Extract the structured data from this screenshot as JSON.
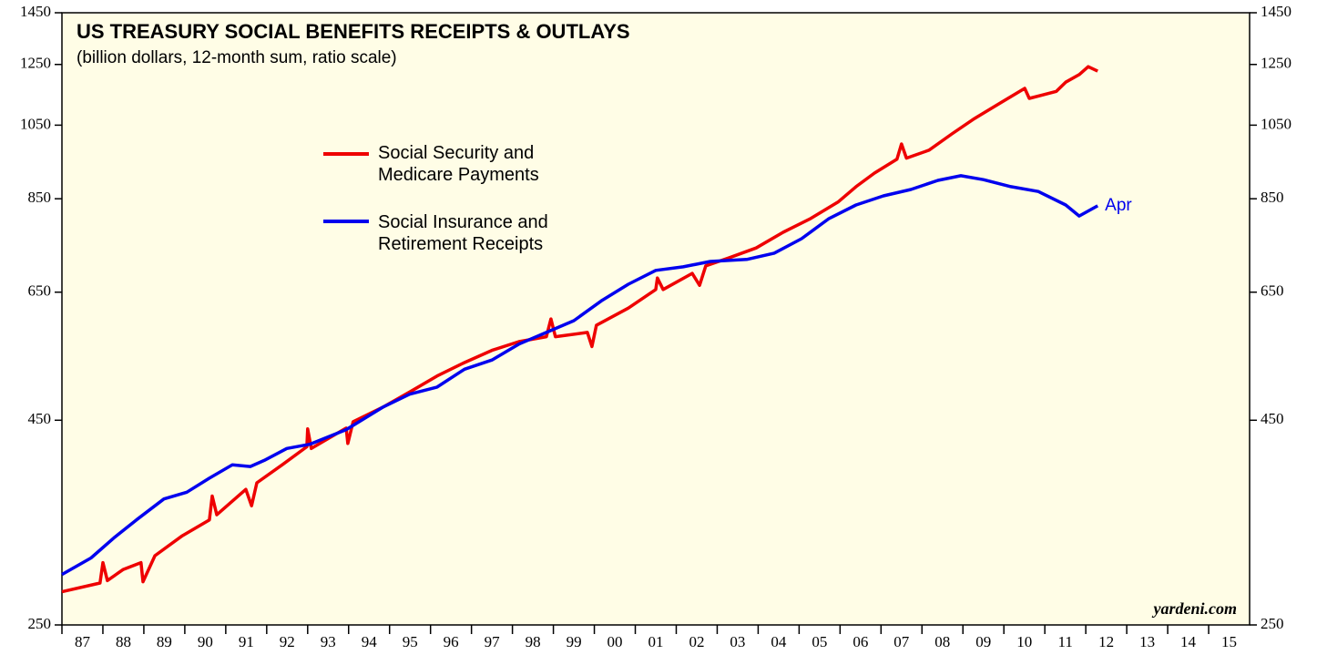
{
  "chart_data": {
    "type": "line",
    "title": "US TREASURY SOCIAL BENEFITS RECEIPTS & OUTLAYS",
    "subtitle": "(billion dollars, 12-month sum, ratio scale)",
    "source": "yardeni.com",
    "annotation": "Apr",
    "log_scale": true,
    "legend": "upper left",
    "xlim": [
      1987,
      2016
    ],
    "ylim": [
      250,
      1450
    ],
    "yticks": [
      250,
      450,
      650,
      850,
      1050,
      1250,
      1450
    ],
    "xticks": [
      {
        "value": 1987,
        "label": "87"
      },
      {
        "value": 1988,
        "label": "88"
      },
      {
        "value": 1989,
        "label": "89"
      },
      {
        "value": 1990,
        "label": "90"
      },
      {
        "value": 1991,
        "label": "91"
      },
      {
        "value": 1992,
        "label": "92"
      },
      {
        "value": 1993,
        "label": "93"
      },
      {
        "value": 1994,
        "label": "94"
      },
      {
        "value": 1995,
        "label": "95"
      },
      {
        "value": 1996,
        "label": "96"
      },
      {
        "value": 1997,
        "label": "97"
      },
      {
        "value": 1998,
        "label": "98"
      },
      {
        "value": 1999,
        "label": "99"
      },
      {
        "value": 2000,
        "label": "00"
      },
      {
        "value": 2001,
        "label": "01"
      },
      {
        "value": 2002,
        "label": "02"
      },
      {
        "value": 2003,
        "label": "03"
      },
      {
        "value": 2004,
        "label": "04"
      },
      {
        "value": 2005,
        "label": "05"
      },
      {
        "value": 2006,
        "label": "06"
      },
      {
        "value": 2007,
        "label": "07"
      },
      {
        "value": 2008,
        "label": "08"
      },
      {
        "value": 2009,
        "label": "09"
      },
      {
        "value": 2010,
        "label": "10"
      },
      {
        "value": 2011,
        "label": "11"
      },
      {
        "value": 2012,
        "label": "12"
      },
      {
        "value": 2013,
        "label": "13"
      },
      {
        "value": 2014,
        "label": "14"
      },
      {
        "value": 2015,
        "label": "15"
      }
    ],
    "series": [
      {
        "name": "Social Security and Medicare Payments",
        "color": "#ee0000",
        "x": [
          1987.0,
          1987.93,
          1988.0,
          1988.11,
          1988.49,
          1988.93,
          1988.98,
          1989.27,
          1989.94,
          1990.6,
          1990.67,
          1990.78,
          1991.49,
          1991.63,
          1991.76,
          1992.38,
          1992.98,
          1993.0,
          1993.09,
          1993.94,
          1993.98,
          1994.11,
          1994.83,
          1995.49,
          1996.16,
          1996.83,
          1997.5,
          1998.16,
          1998.83,
          1998.94,
          1999.05,
          1999.83,
          1999.94,
          2000.05,
          2000.83,
          2001.5,
          2001.54,
          2001.68,
          2002.39,
          2002.57,
          2002.72,
          2003.28,
          2003.95,
          2004.61,
          2005.28,
          2005.95,
          2006.39,
          2006.84,
          2007.39,
          2007.5,
          2007.62,
          2008.17,
          2008.73,
          2009.28,
          2009.95,
          2010.51,
          2010.62,
          2011.28,
          2011.51,
          2011.84,
          2012.06,
          2012.29
        ],
        "values": [
          275,
          282,
          299,
          284,
          293,
          299,
          283,
          305,
          323,
          338,
          362,
          343,
          369,
          352,
          376,
          396,
          417,
          439,
          415,
          440,
          421,
          448,
          467,
          488,
          511,
          531,
          550,
          564,
          572,
          602,
          572,
          579,
          556,
          591,
          621,
          655,
          677,
          655,
          686,
          663,
          701,
          717,
          738,
          772,
          803,
          842,
          880,
          915,
          952,
          995,
          955,
          977,
          1024,
          1070,
          1122,
          1167,
          1134,
          1157,
          1188,
          1214,
          1242,
          1226
        ]
      },
      {
        "name": "Social Insurance and Retirement Receipts",
        "color": "#0000ee",
        "x": [
          1987.0,
          1987.71,
          1988.27,
          1988.82,
          1989.49,
          1990.05,
          1990.6,
          1991.16,
          1991.6,
          1991.94,
          1992.49,
          1993.05,
          1993.94,
          1994.83,
          1995.49,
          1996.16,
          1996.83,
          1997.5,
          1998.16,
          1998.83,
          1999.5,
          2000.17,
          2000.83,
          2001.5,
          2002.17,
          2002.83,
          2003.72,
          2004.39,
          2005.06,
          2005.73,
          2006.39,
          2007.06,
          2007.73,
          2008.39,
          2008.95,
          2009.5,
          2010.17,
          2010.84,
          2011.51,
          2011.84,
          2012.29
        ],
        "values": [
          289,
          303,
          321,
          338,
          359,
          366,
          381,
          396,
          394,
          401,
          415,
          420,
          438,
          467,
          485,
          495,
          521,
          535,
          560,
          579,
          599,
          634,
          665,
          692,
          699,
          710,
          714,
          727,
          758,
          803,
          835,
          857,
          873,
          896,
          908,
          898,
          880,
          868,
          835,
          809,
          833
        ]
      }
    ]
  }
}
